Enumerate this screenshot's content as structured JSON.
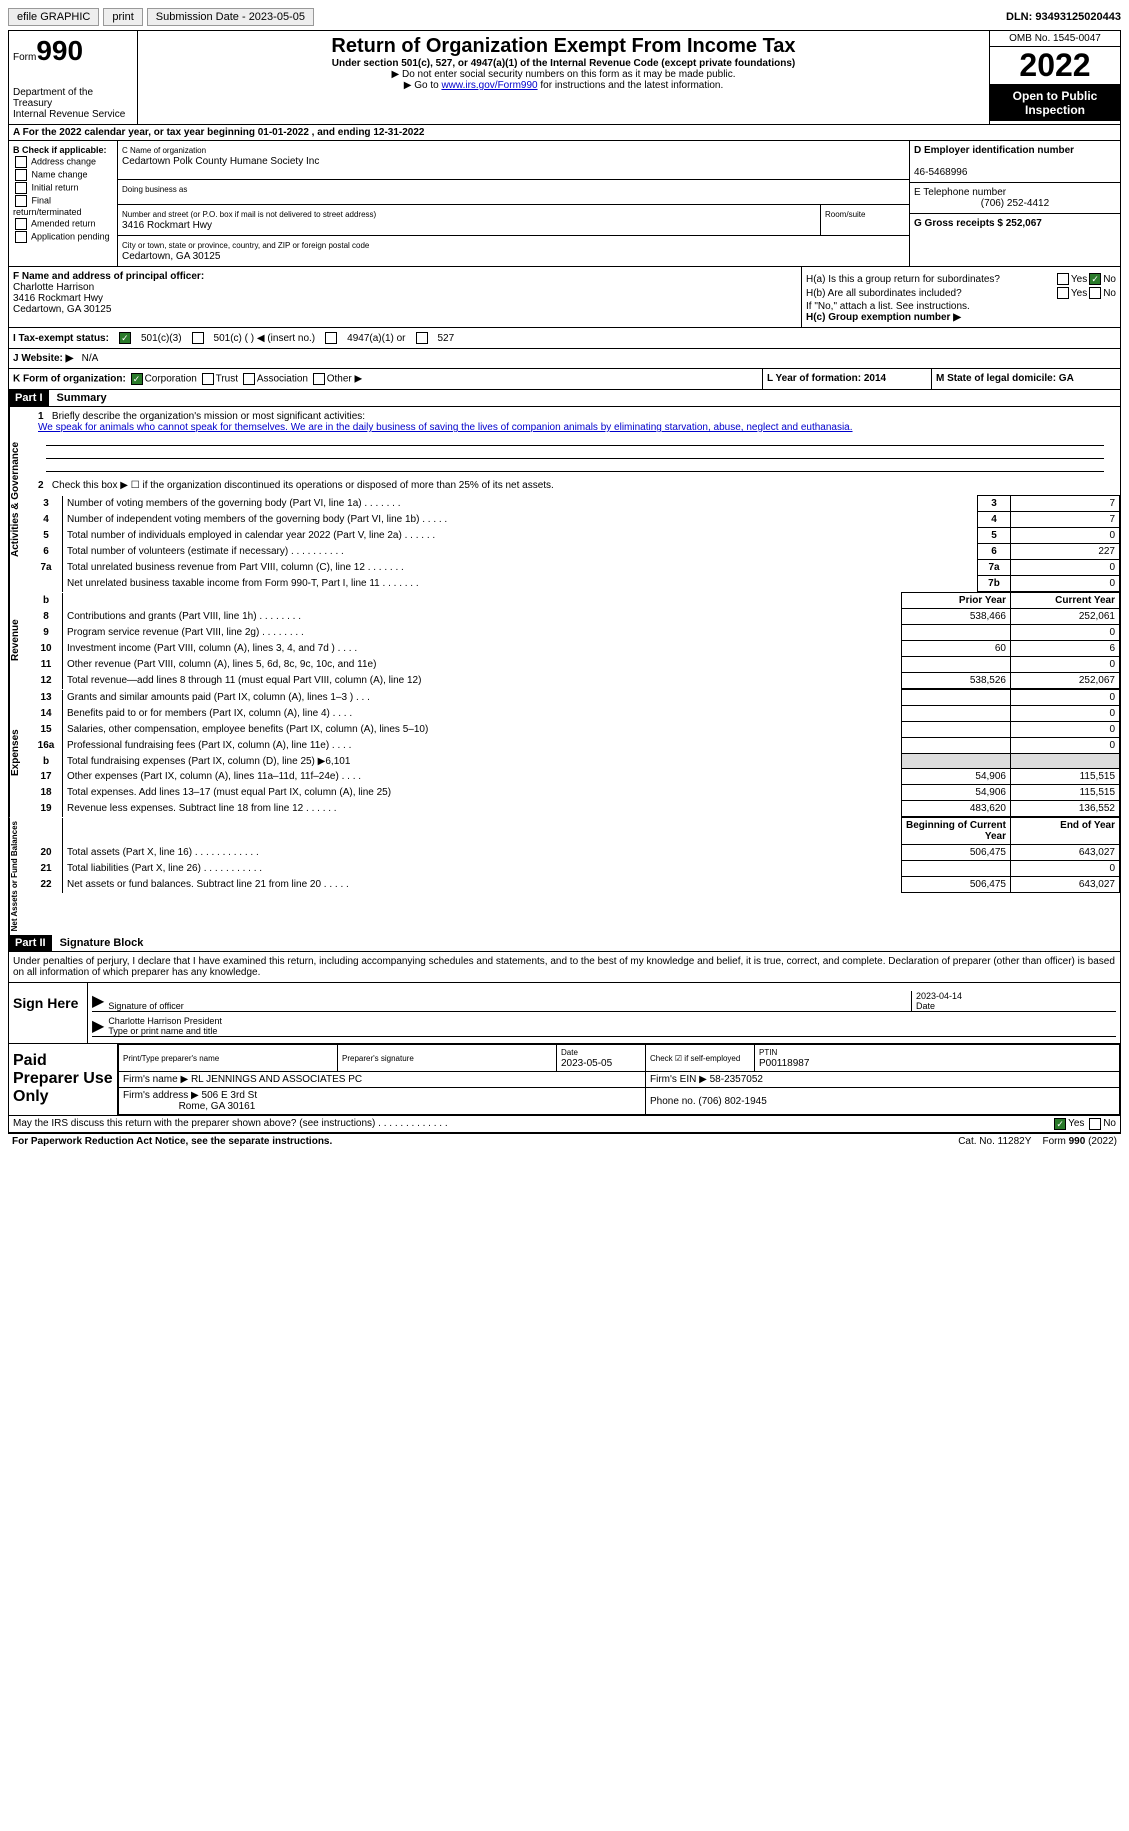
{
  "toolbar": {
    "efile_label": "efile GRAPHIC",
    "print_label": "print",
    "submission_label": "Submission Date - 2023-05-05",
    "dln_label": "DLN: 93493125020443"
  },
  "header": {
    "form_word": "Form",
    "form_number": "990",
    "dept": "Department of the Treasury",
    "irs": "Internal Revenue Service",
    "title": "Return of Organization Exempt From Income Tax",
    "sub": "Under section 501(c), 527, or 4947(a)(1) of the Internal Revenue Code (except private foundations)",
    "note1": "▶ Do not enter social security numbers on this form as it may be made public.",
    "note2_prefix": "▶ Go to ",
    "note2_link": "www.irs.gov/Form990",
    "note2_suffix": " for instructions and the latest information.",
    "omb": "OMB No. 1545-0047",
    "year": "2022",
    "open": "Open to Public Inspection"
  },
  "row_a": "A For the 2022 calendar year, or tax year beginning 01-01-2022   , and ending 12-31-2022",
  "section_b": {
    "check_label": "B Check if applicable:",
    "opts": [
      "Address change",
      "Name change",
      "Initial return",
      "Final return/terminated",
      "Amended return",
      "Application pending"
    ],
    "c_label": "C Name of organization",
    "c_value": "Cedartown Polk County Humane Society Inc",
    "dba_label": "Doing business as",
    "street_label": "Number and street (or P.O. box if mail is not delivered to street address)",
    "street_value": "3416 Rockmart Hwy",
    "suite_label": "Room/suite",
    "city_label": "City or town, state or province, country, and ZIP or foreign postal code",
    "city_value": "Cedartown, GA  30125",
    "d_label": "D Employer identification number",
    "d_value": "46-5468996",
    "e_label": "E Telephone number",
    "e_value": "(706) 252-4412",
    "g_label": "G Gross receipts $ 252,067"
  },
  "section_fh": {
    "f_label": "F Name and address of principal officer:",
    "f_name": "Charlotte Harrison",
    "f_street": "3416 Rockmart Hwy",
    "f_city": "Cedartown, GA  30125",
    "ha_label": "H(a)  Is this a group return for subordinates?",
    "hb_label": "H(b)  Are all subordinates included?",
    "hb_note": "If \"No,\" attach a list. See instructions.",
    "hc_label": "H(c)  Group exemption number ▶",
    "yes": "Yes",
    "no": "No"
  },
  "tax_status": {
    "i_label": "I   Tax-exempt status:",
    "opt1": "501(c)(3)",
    "opt2": "501(c) (  ) ◀ (insert no.)",
    "opt3": "4947(a)(1) or",
    "opt4": "527"
  },
  "row_j": {
    "label": "J   Website: ▶",
    "value": "N/A"
  },
  "row_kl": {
    "k_label": "K Form of organization:",
    "k_opts": [
      "Corporation",
      "Trust",
      "Association",
      "Other ▶"
    ],
    "l_label": "L Year of formation: 2014",
    "m_label": "M State of legal domicile: GA"
  },
  "part1": {
    "header": "Part I",
    "title": "Summary",
    "line1_label": "Briefly describe the organization's mission or most significant activities:",
    "line1_text": "We speak for animals who cannot speak for themselves. We are in the daily business of saving the lives of companion animals by eliminating starvation, abuse, neglect and euthanasia.",
    "line2": "Check this box ▶ ☐ if the organization discontinued its operations or disposed of more than 25% of its net assets.",
    "governance_label": "Activities & Governance",
    "revenue_label": "Revenue",
    "expenses_label": "Expenses",
    "netassets_label": "Net Assets or Fund Balances",
    "rows_gov": [
      {
        "n": "3",
        "t": "Number of voting members of the governing body (Part VI, line 1a)   .    .    .    .    .    .    .",
        "box": "3",
        "v": "7"
      },
      {
        "n": "4",
        "t": "Number of independent voting members of the governing body (Part VI, line 1b)  .    .    .    .    .",
        "box": "4",
        "v": "7"
      },
      {
        "n": "5",
        "t": "Total number of individuals employed in calendar year 2022 (Part V, line 2a)  .    .    .    .    .    .",
        "box": "5",
        "v": "0"
      },
      {
        "n": "6",
        "t": "Total number of volunteers (estimate if necessary)    .    .    .    .    .    .    .    .    .    .",
        "box": "6",
        "v": "227"
      },
      {
        "n": "7a",
        "t": "Total unrelated business revenue from Part VIII, column (C), line 12   .    .    .    .    .    .    .",
        "box": "7a",
        "v": "0"
      },
      {
        "n": "",
        "t": "Net unrelated business taxable income from Form 990-T, Part I, line 11  .    .    .    .    .    .    .",
        "box": "7b",
        "v": "0"
      }
    ],
    "prior_year": "Prior Year",
    "current_year": "Current Year",
    "rows_rev": [
      {
        "n": "8",
        "t": "Contributions and grants (Part VIII, line 1h)   .    .    .    .    .    .    .    .",
        "py": "538,466",
        "cy": "252,061"
      },
      {
        "n": "9",
        "t": "Program service revenue (Part VIII, line 2g)   .    .    .    .    .    .    .    .",
        "py": "",
        "cy": "0"
      },
      {
        "n": "10",
        "t": "Investment income (Part VIII, column (A), lines 3, 4, and 7d )   .    .    .    .",
        "py": "60",
        "cy": "6"
      },
      {
        "n": "11",
        "t": "Other revenue (Part VIII, column (A), lines 5, 6d, 8c, 9c, 10c, and 11e)",
        "py": "",
        "cy": "0"
      },
      {
        "n": "12",
        "t": "Total revenue—add lines 8 through 11 (must equal Part VIII, column (A), line 12)",
        "py": "538,526",
        "cy": "252,067"
      }
    ],
    "rows_exp": [
      {
        "n": "13",
        "t": "Grants and similar amounts paid (Part IX, column (A), lines 1–3 )  .    .    .",
        "py": "",
        "cy": "0"
      },
      {
        "n": "14",
        "t": "Benefits paid to or for members (Part IX, column (A), line 4)  .    .    .    .",
        "py": "",
        "cy": "0"
      },
      {
        "n": "15",
        "t": "Salaries, other compensation, employee benefits (Part IX, column (A), lines 5–10)",
        "py": "",
        "cy": "0"
      },
      {
        "n": "16a",
        "t": "Professional fundraising fees (Part IX, column (A), line 11e)   .    .    .    .",
        "py": "",
        "cy": "0"
      },
      {
        "n": "b",
        "t": "Total fundraising expenses (Part IX, column (D), line 25) ▶6,101",
        "py": "SHADE",
        "cy": "SHADE"
      },
      {
        "n": "17",
        "t": "Other expenses (Part IX, column (A), lines 11a–11d, 11f–24e)   .    .    .    .",
        "py": "54,906",
        "cy": "115,515"
      },
      {
        "n": "18",
        "t": "Total expenses. Add lines 13–17 (must equal Part IX, column (A), line 25)",
        "py": "54,906",
        "cy": "115,515"
      },
      {
        "n": "19",
        "t": "Revenue less expenses. Subtract line 18 from line 12  .    .    .    .    .    .",
        "py": "483,620",
        "cy": "136,552"
      }
    ],
    "beg_year": "Beginning of Current Year",
    "end_year": "End of Year",
    "rows_net": [
      {
        "n": "20",
        "t": "Total assets (Part X, line 16)  .    .    .    .    .    .    .    .    .    .    .    .",
        "py": "506,475",
        "cy": "643,027"
      },
      {
        "n": "21",
        "t": "Total liabilities (Part X, line 26)  .    .    .    .    .    .    .    .    .    .    .",
        "py": "",
        "cy": "0"
      },
      {
        "n": "22",
        "t": "Net assets or fund balances. Subtract line 21 from line 20  .    .    .    .    .",
        "py": "506,475",
        "cy": "643,027"
      }
    ]
  },
  "part2": {
    "header": "Part II",
    "title": "Signature Block",
    "declaration": "Under penalties of perjury, I declare that I have examined this return, including accompanying schedules and statements, and to the best of my knowledge and belief, it is true, correct, and complete. Declaration of preparer (other than officer) is based on all information of which preparer has any knowledge.",
    "sign_here": "Sign Here",
    "sig_officer_label": "Signature of officer",
    "sig_date": "2023-04-14",
    "date_label": "Date",
    "name_title": "Charlotte Harrison  President",
    "name_label": "Type or print name and title",
    "paid_label": "Paid Preparer Use Only",
    "prep_name_label": "Print/Type preparer's name",
    "prep_sig_label": "Preparer's signature",
    "prep_date_label": "Date",
    "prep_date": "2023-05-05",
    "check_label": "Check ☑ if self-employed",
    "ptin_label": "PTIN",
    "ptin": "P00118987",
    "firm_name_label": "Firm's name    ▶",
    "firm_name": "RL JENNINGS AND ASSOCIATES PC",
    "firm_ein_label": "Firm's EIN ▶",
    "firm_ein": "58-2357052",
    "firm_addr_label": "Firm's address ▶",
    "firm_addr1": "506 E 3rd St",
    "firm_addr2": "Rome, GA  30161",
    "phone_label": "Phone no.",
    "phone": "(706) 802-1945",
    "discuss": "May the IRS discuss this return with the preparer shown above? (see instructions)   .    .    .    .    .    .    .    .    .    .    .    .    .",
    "yes": "Yes",
    "no": "No"
  },
  "footer": {
    "notice": "For Paperwork Reduction Act Notice, see the separate instructions.",
    "cat": "Cat. No. 11282Y",
    "form": "Form 990 (2022)"
  }
}
